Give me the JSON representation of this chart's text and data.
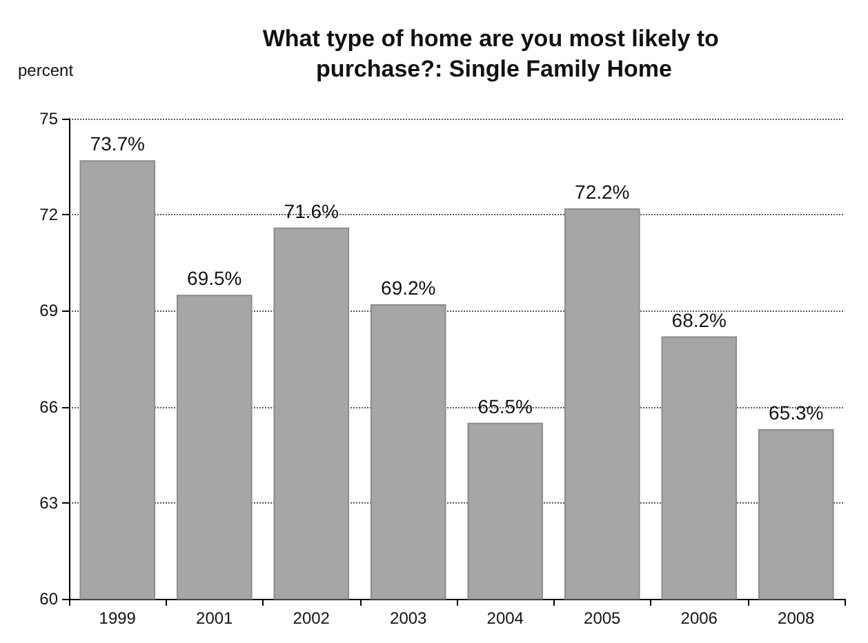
{
  "chart_data": {
    "type": "bar",
    "title": "What type of home are you most likely to purchase?: Single Family Home",
    "ylabel": "percent",
    "categories": [
      "1999",
      "2001",
      "2002",
      "2003",
      "2004",
      "2005",
      "2006",
      "2008"
    ],
    "values": [
      73.7,
      69.5,
      71.6,
      69.2,
      65.5,
      72.2,
      68.2,
      65.3
    ],
    "value_labels": [
      "73.7%",
      "69.5%",
      "71.6%",
      "69.2%",
      "65.5%",
      "72.2%",
      "68.2%",
      "65.3%"
    ],
    "color": "#a6a6a6",
    "ylim": [
      60,
      75
    ],
    "yticks": [
      60,
      63,
      66,
      69,
      72,
      75
    ],
    "grid": "y"
  }
}
